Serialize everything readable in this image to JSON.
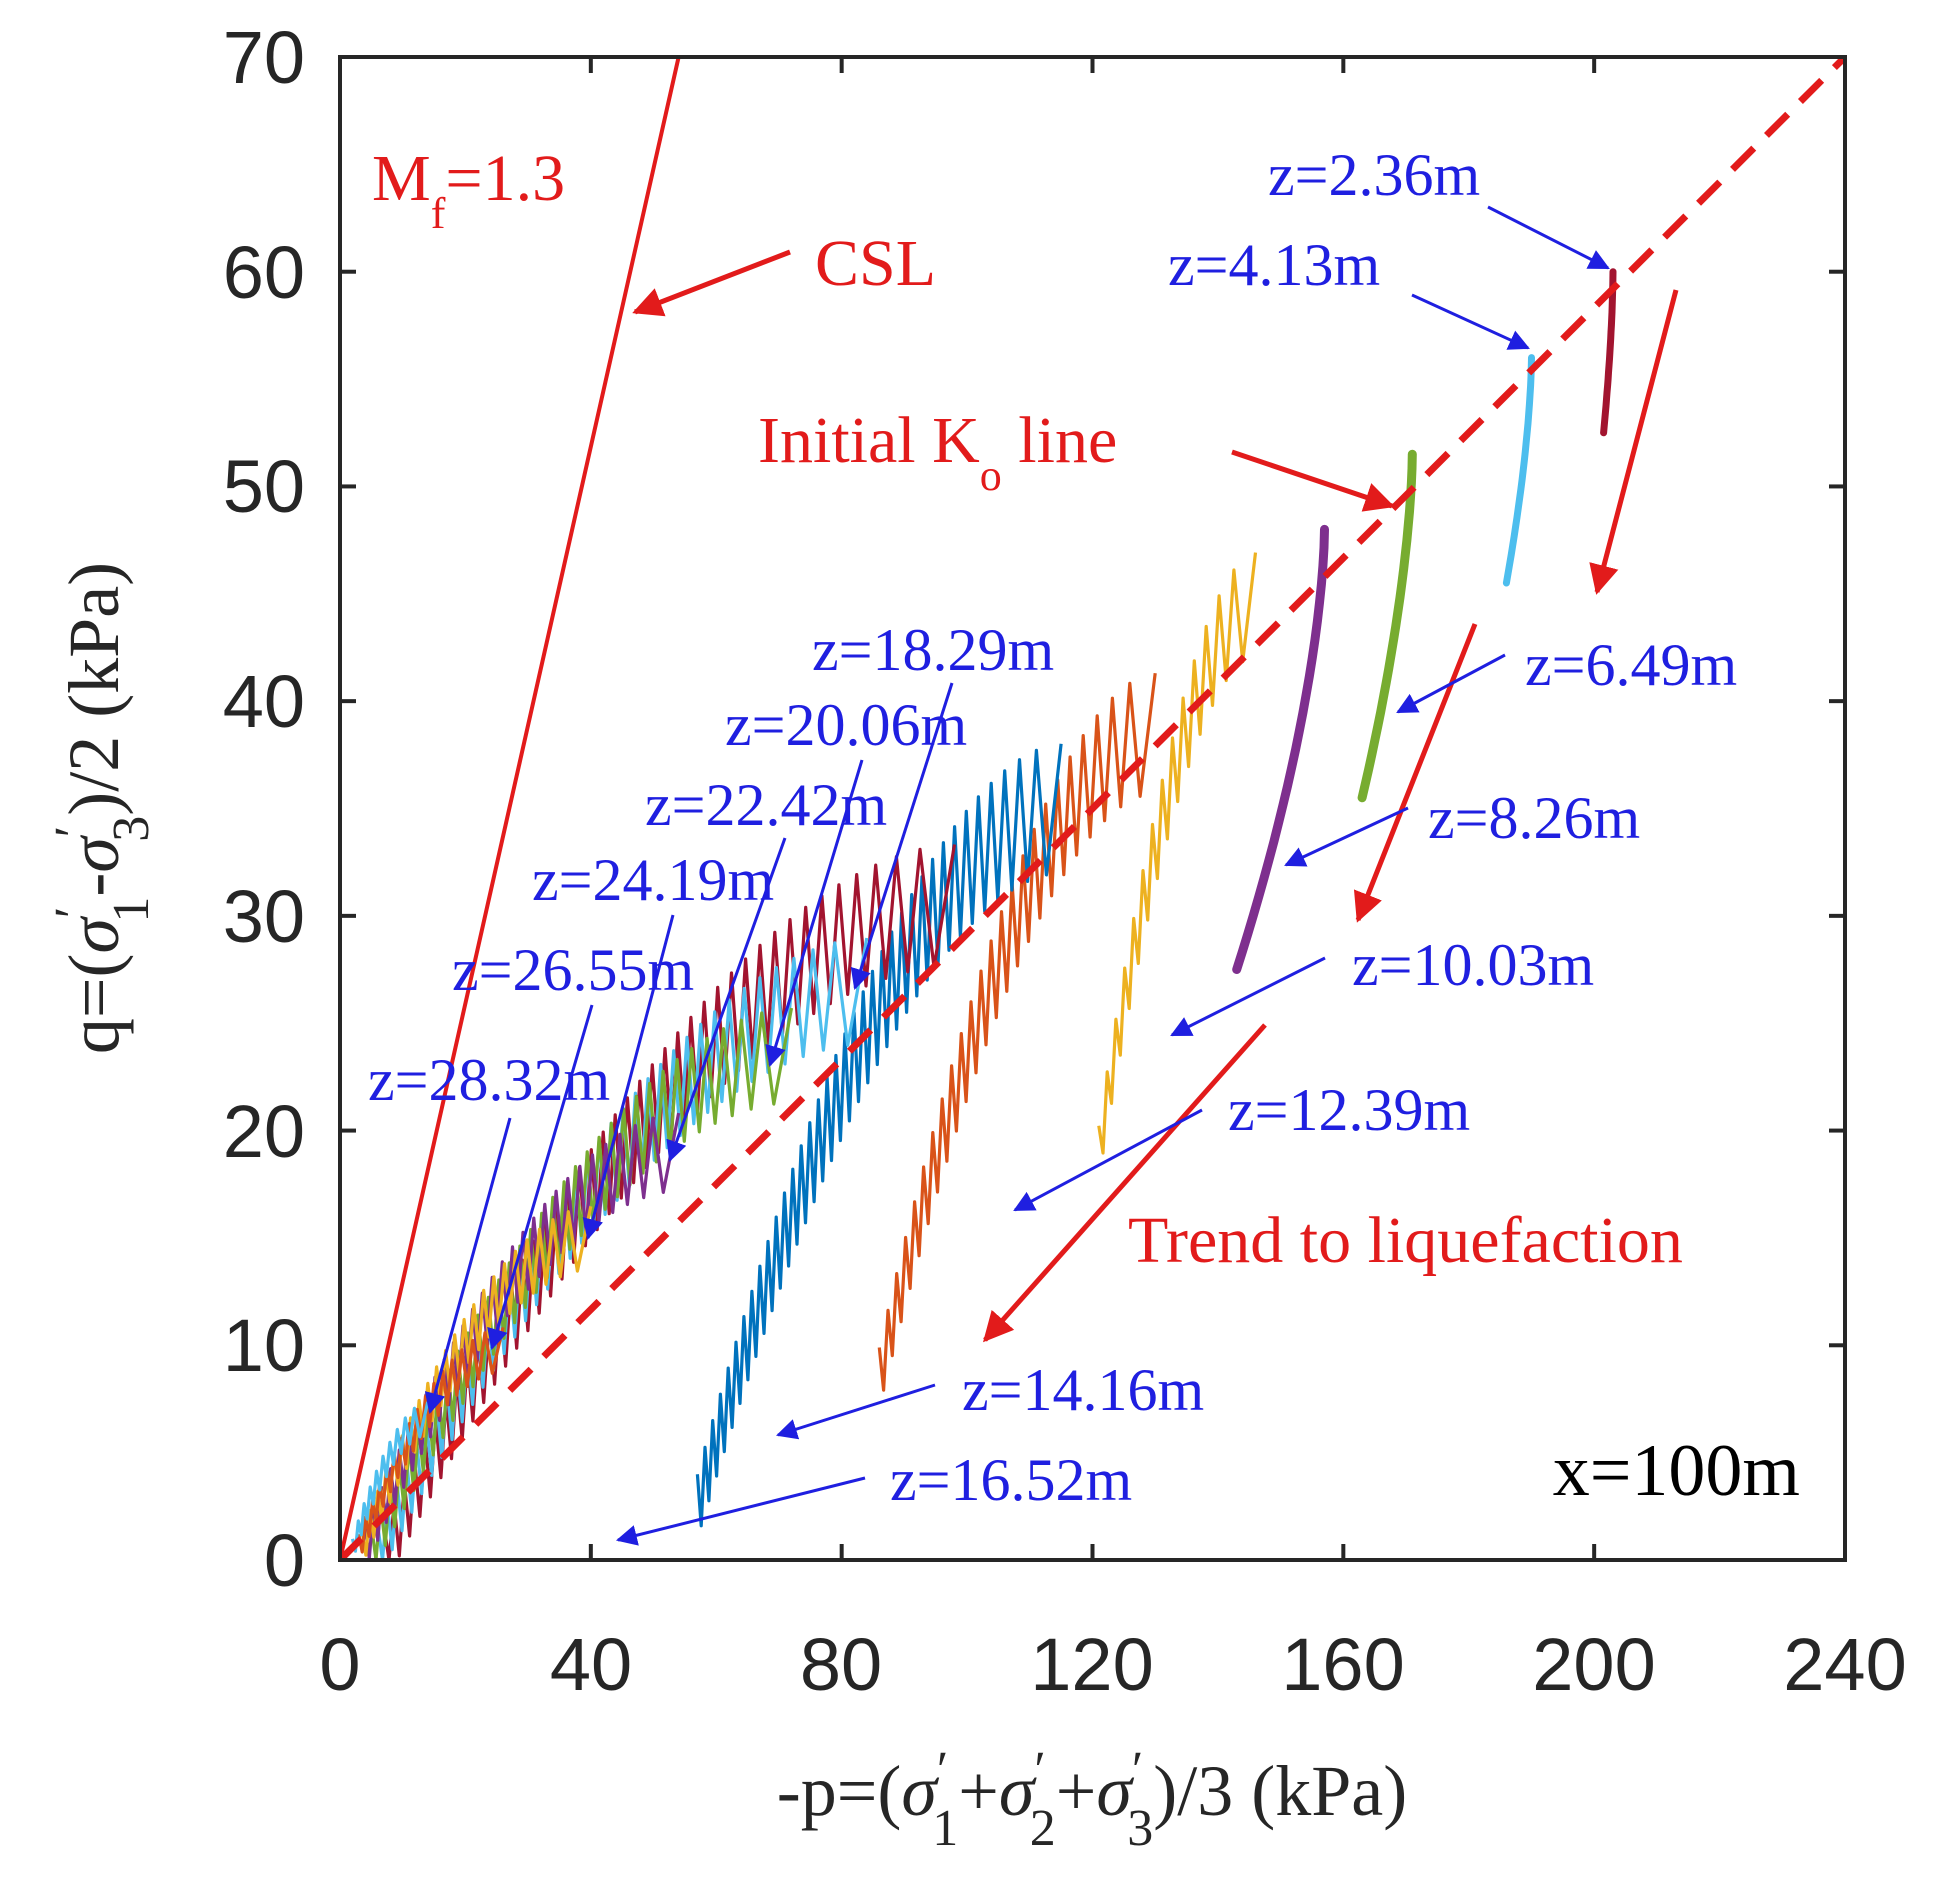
{
  "chart_data": {
    "type": "line",
    "title": "",
    "xlabel": "-p=(σ′1+σ′2+σ′3)/3 (kPa)",
    "ylabel": "q=(σ′1-σ′3)/2 (kPa)",
    "xlabel_parts": [
      "-p=(",
      "σ",
      "′",
      "1",
      "+",
      "σ",
      "′",
      "2",
      "+",
      "σ",
      "′",
      "3",
      ")/3 (kPa)"
    ],
    "ylabel_parts": [
      "q=(",
      "σ",
      "′",
      "1",
      "-",
      "σ",
      "′",
      "3",
      ")/2 (kPa)"
    ],
    "xlim": [
      0,
      240
    ],
    "ylim": [
      0,
      70
    ],
    "xticks": [
      0,
      40,
      80,
      120,
      160,
      200,
      240
    ],
    "yticks": [
      0,
      10,
      20,
      30,
      40,
      50,
      60,
      70
    ],
    "xtick_labels": [
      "0",
      "40",
      "80",
      "120",
      "160",
      "200",
      "240"
    ],
    "ytick_labels": [
      "0",
      "10",
      "20",
      "30",
      "40",
      "50",
      "60",
      "70"
    ],
    "reference_lines": [
      {
        "name": "CSL",
        "slope": 1.3,
        "style": "solid",
        "color": "#e21b1b",
        "points": [
          [
            0,
            0
          ],
          [
            54,
            70
          ]
        ]
      },
      {
        "name": "Initial Ko line",
        "slope": 0.2917,
        "style": "dashed",
        "color": "#e21b1b",
        "points": [
          [
            0,
            0
          ],
          [
            240,
            70
          ]
        ]
      }
    ],
    "series": [
      {
        "name": "z=2.36m",
        "color": "#a2142f",
        "start": [
          203,
          60
        ],
        "end": [
          201.5,
          52.5
        ],
        "n_cycles": 0
      },
      {
        "name": "z=4.13m",
        "color": "#4dbeee",
        "start": [
          190,
          56
        ],
        "end": [
          186,
          45.5
        ],
        "n_cycles": 0
      },
      {
        "name": "z=6.49m",
        "color": "#77ac30",
        "start": [
          171,
          51.5
        ],
        "end": [
          163,
          35.5
        ],
        "n_cycles": 0
      },
      {
        "name": "z=8.26m",
        "color": "#7e2f8e",
        "start": [
          157,
          48
        ],
        "end": [
          143,
          27.5
        ],
        "n_cycles": 0
      },
      {
        "name": "z=10.03m",
        "color": "#edb120",
        "start": [
          146,
          44.5
        ],
        "end": [
          121,
          19
        ],
        "n_cycles": 14
      },
      {
        "name": "z=12.39m",
        "color": "#d95319",
        "start": [
          130,
          38.5
        ],
        "end": [
          86,
          8.5
        ],
        "n_cycles": 24
      },
      {
        "name": "z=14.16m",
        "color": "#0072bd",
        "start": [
          115,
          35
        ],
        "end": [
          57,
          2.5
        ],
        "n_cycles": 36
      },
      {
        "name": "z=16.52m",
        "color": "#a2142f",
        "start": [
          98,
          30.5
        ],
        "end": [
          7,
          0.2
        ],
        "n_cycles": 42
      },
      {
        "name": "z=18.29m",
        "color": "#4dbeee",
        "start": [
          84,
          26.5
        ],
        "end": [
          6,
          0.4
        ],
        "n_cycles": 38
      },
      {
        "name": "z=20.06m",
        "color": "#77ac30",
        "start": [
          72,
          23.5
        ],
        "end": [
          5,
          0.5
        ],
        "n_cycles": 34
      },
      {
        "name": "z=22.42m",
        "color": "#7e2f8e",
        "start": [
          54,
          19
        ],
        "end": [
          4,
          0.6
        ],
        "n_cycles": 28
      },
      {
        "name": "z=24.19m",
        "color": "#edb120",
        "start": [
          40,
          15
        ],
        "end": [
          3.5,
          0.6
        ],
        "n_cycles": 22
      },
      {
        "name": "z=26.55m",
        "color": "#d95319",
        "start": [
          26,
          9.8
        ],
        "end": [
          3,
          0.6
        ],
        "n_cycles": 16
      },
      {
        "name": "z=28.32m",
        "color": "#4dbeee",
        "start": [
          14,
          6.6
        ],
        "end": [
          2,
          0.5
        ],
        "n_cycles": 10
      }
    ],
    "annotations": {
      "mf": {
        "base": "M",
        "sub": "f",
        "rest": "=1.3"
      },
      "csl": "CSL",
      "initial_ko": {
        "before": "Initial K",
        "sub": "o",
        "after": " line"
      },
      "trend": "Trend to liquefaction",
      "x_position": "x=100m",
      "depth_labels": [
        "z=2.36m",
        "z=4.13m",
        "z=6.49m",
        "z=8.26m",
        "z=10.03m",
        "z=12.39m",
        "z=14.16m",
        "z=16.52m",
        "z=18.29m",
        "z=20.06m",
        "z=22.42m",
        "z=24.19m",
        "z=26.55m",
        "z=28.32m"
      ]
    },
    "colors": {
      "annotation_blue": "#1f1fe0",
      "annotation_red": "#e21b1b",
      "axis": "#262626"
    }
  }
}
